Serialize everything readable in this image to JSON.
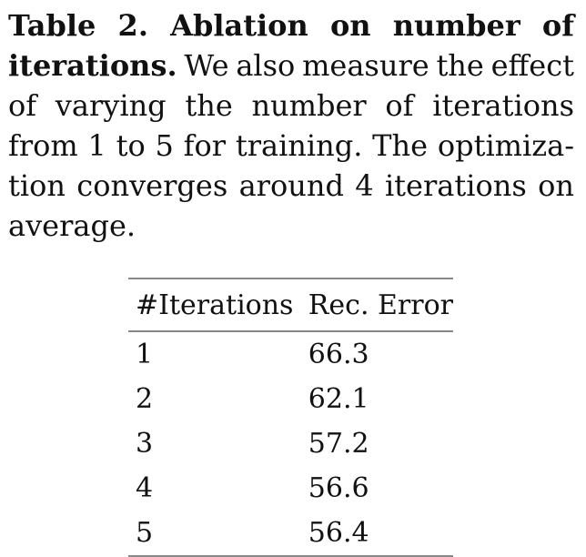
{
  "caption": {
    "line1": [
      "Table",
      "2.",
      "Ablation",
      "on",
      "number",
      "of"
    ],
    "line2_bold": "iterations.",
    "line2_rest": [
      "We",
      "also",
      "measure",
      "the",
      "effect"
    ],
    "line3": [
      "of",
      "varying",
      "the",
      "number",
      "of",
      "iterations"
    ],
    "line4": [
      "from",
      "1",
      "to",
      "5",
      "for",
      "training.",
      "The",
      "optimiza-"
    ],
    "line5": [
      "tion",
      "converges",
      "around",
      "4",
      "iterations",
      "on"
    ],
    "line6": "average."
  },
  "table": {
    "headers": [
      "#Iterations",
      "Rec. Error"
    ],
    "rows": [
      [
        "1",
        "66.3"
      ],
      [
        "2",
        "62.1"
      ],
      [
        "3",
        "57.2"
      ],
      [
        "4",
        "56.6"
      ],
      [
        "5",
        "56.4"
      ]
    ]
  }
}
